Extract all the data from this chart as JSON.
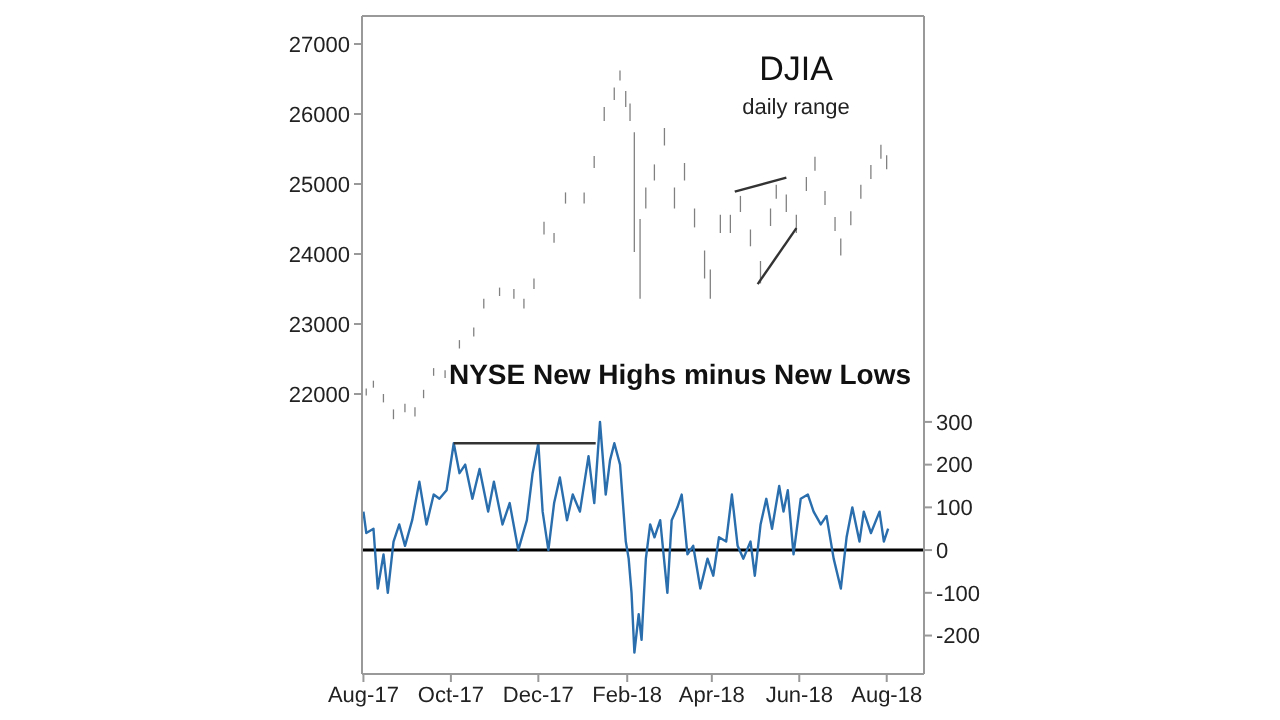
{
  "chart_data": {
    "type": "bar",
    "title": "DJIA",
    "subtitle": "daily range",
    "y2label": "NYSE New Highs minus New Lows",
    "xlim": [
      "2017-07-31",
      "2018-08-27"
    ],
    "xticks": [
      {
        "value": "2017-08-01",
        "label": "Aug-17"
      },
      {
        "value": "2017-10-01",
        "label": "Oct-17"
      },
      {
        "value": "2017-12-01",
        "label": "Dec-17"
      },
      {
        "value": "2018-02-01",
        "label": "Feb-18"
      },
      {
        "value": "2018-04-01",
        "label": "Apr-18"
      },
      {
        "value": "2018-06-01",
        "label": "Jun-18"
      },
      {
        "value": "2018-08-01",
        "label": "Aug-18"
      }
    ],
    "ylim": [
      18000,
      27400
    ],
    "yticks": [
      22000,
      23000,
      24000,
      25000,
      26000,
      27000
    ],
    "y2lim": [
      -290,
      1250
    ],
    "y2ticks": [
      -200,
      -100,
      0,
      100,
      200,
      300
    ],
    "ref_lines": [
      {
        "axis": "y2",
        "value": 0,
        "color": "#000000"
      }
    ],
    "series": [
      {
        "color": "#808080",
        "axis": "y",
        "x": [
          "2017-08-03",
          "2017-08-08",
          "2017-08-15",
          "2017-08-22",
          "2017-08-30",
          "2017-09-06",
          "2017-09-12",
          "2017-09-19",
          "2017-09-27",
          "2017-10-07",
          "2017-10-17",
          "2017-10-24",
          "2017-11-04",
          "2017-11-14",
          "2017-11-21",
          "2017-11-28",
          "2017-12-05",
          "2017-12-12",
          "2017-12-20",
          "2018-01-02",
          "2018-01-09",
          "2018-01-16",
          "2018-01-23",
          "2018-01-27",
          "2018-01-31",
          "2018-02-03",
          "2018-02-06",
          "2018-02-10",
          "2018-02-14",
          "2018-02-20",
          "2018-02-27",
          "2018-03-06",
          "2018-03-13",
          "2018-03-20",
          "2018-03-27",
          "2018-03-31",
          "2018-04-07",
          "2018-04-14",
          "2018-04-21",
          "2018-04-28",
          "2018-05-05",
          "2018-05-12",
          "2018-05-16",
          "2018-05-23",
          "2018-05-30",
          "2018-06-06",
          "2018-06-12",
          "2018-06-19",
          "2018-06-26",
          "2018-06-30",
          "2018-07-07",
          "2018-07-14",
          "2018-07-21",
          "2018-07-28",
          "2018-08-01"
        ],
        "base": [
          21980,
          22090,
          21880,
          21640,
          21740,
          21680,
          21940,
          22260,
          22230,
          22650,
          22820,
          23220,
          23400,
          23360,
          23220,
          23500,
          24280,
          24160,
          24720,
          24720,
          25230,
          25900,
          26200,
          26480,
          26100,
          25900,
          24030,
          23360,
          24650,
          25050,
          25550,
          24650,
          25050,
          24380,
          23650,
          23360,
          24300,
          24300,
          24600,
          24110,
          23580,
          24400,
          24790,
          24600,
          24300,
          24900,
          25190,
          24700,
          24330,
          23980,
          24410,
          24790,
          25070,
          25360,
          25210
        ],
        "values": [
          100,
          100,
          120,
          140,
          120,
          130,
          120,
          110,
          110,
          120,
          130,
          140,
          120,
          140,
          140,
          150,
          180,
          140,
          160,
          160,
          170,
          200,
          180,
          140,
          230,
          250,
          1710,
          1140,
          300,
          230,
          250,
          300,
          250,
          270,
          400,
          420,
          260,
          260,
          230,
          240,
          320,
          250,
          200,
          250,
          260,
          200,
          200,
          200,
          200,
          240,
          200,
          200,
          200,
          200,
          200
        ]
      },
      {
        "type": "line",
        "color": "#333333",
        "axis": "y",
        "x": [
          "2018-04-17",
          "2018-05-23"
        ],
        "values": [
          24890,
          25090
        ]
      },
      {
        "type": "line",
        "color": "#333333",
        "axis": "y",
        "x": [
          "2018-05-03",
          "2018-05-30"
        ],
        "values": [
          23570,
          24370
        ]
      },
      {
        "type": "line",
        "color": "#2a6ead",
        "axis": "y2",
        "marker": "none",
        "x": [
          "2017-08-01",
          "2017-08-03",
          "2017-08-08",
          "2017-08-11",
          "2017-08-15",
          "2017-08-18",
          "2017-08-22",
          "2017-08-26",
          "2017-08-30",
          "2017-09-04",
          "2017-09-09",
          "2017-09-14",
          "2017-09-19",
          "2017-09-23",
          "2017-09-28",
          "2017-10-03",
          "2017-10-07",
          "2017-10-11",
          "2017-10-16",
          "2017-10-21",
          "2017-10-27",
          "2017-10-31",
          "2017-11-06",
          "2017-11-11",
          "2017-11-17",
          "2017-11-23",
          "2017-11-27",
          "2017-12-01",
          "2017-12-04",
          "2017-12-08",
          "2017-12-12",
          "2017-12-16",
          "2017-12-21",
          "2017-12-25",
          "2017-12-30",
          "2018-01-05",
          "2018-01-09",
          "2018-01-13",
          "2018-01-17",
          "2018-01-20",
          "2018-01-23",
          "2018-01-27",
          "2018-01-31",
          "2018-02-02",
          "2018-02-04",
          "2018-02-06",
          "2018-02-09",
          "2018-02-11",
          "2018-02-14",
          "2018-02-17",
          "2018-02-20",
          "2018-02-24",
          "2018-03-01",
          "2018-03-04",
          "2018-03-08",
          "2018-03-11",
          "2018-03-15",
          "2018-03-19",
          "2018-03-24",
          "2018-03-29",
          "2018-04-02",
          "2018-04-06",
          "2018-04-11",
          "2018-04-15",
          "2018-04-19",
          "2018-04-23",
          "2018-04-28",
          "2018-05-01",
          "2018-05-05",
          "2018-05-09",
          "2018-05-13",
          "2018-05-18",
          "2018-05-21",
          "2018-05-24",
          "2018-05-28",
          "2018-06-02",
          "2018-06-07",
          "2018-06-11",
          "2018-06-16",
          "2018-06-20",
          "2018-06-25",
          "2018-06-30",
          "2018-07-04",
          "2018-07-08",
          "2018-07-13",
          "2018-07-16",
          "2018-07-21",
          "2018-07-27",
          "2018-07-30",
          "2018-08-02"
        ],
        "values": [
          90,
          40,
          50,
          -90,
          -10,
          -100,
          20,
          60,
          10,
          70,
          160,
          60,
          130,
          120,
          140,
          250,
          180,
          200,
          120,
          190,
          90,
          160,
          60,
          110,
          0,
          70,
          180,
          250,
          90,
          0,
          110,
          170,
          70,
          130,
          90,
          220,
          110,
          300,
          130,
          210,
          250,
          200,
          20,
          -20,
          -100,
          -240,
          -150,
          -210,
          -20,
          60,
          30,
          70,
          -100,
          70,
          100,
          130,
          -10,
          10,
          -90,
          -20,
          -60,
          30,
          20,
          130,
          10,
          -20,
          20,
          -60,
          60,
          120,
          50,
          150,
          90,
          140,
          -10,
          120,
          130,
          90,
          60,
          80,
          -20,
          -90,
          30,
          100,
          20,
          90,
          40,
          90,
          20,
          50
        ]
      },
      {
        "type": "line",
        "color": "#333333",
        "axis": "y2",
        "x": [
          "2017-10-03",
          "2018-01-10"
        ],
        "values": [
          250,
          250
        ]
      }
    ]
  }
}
